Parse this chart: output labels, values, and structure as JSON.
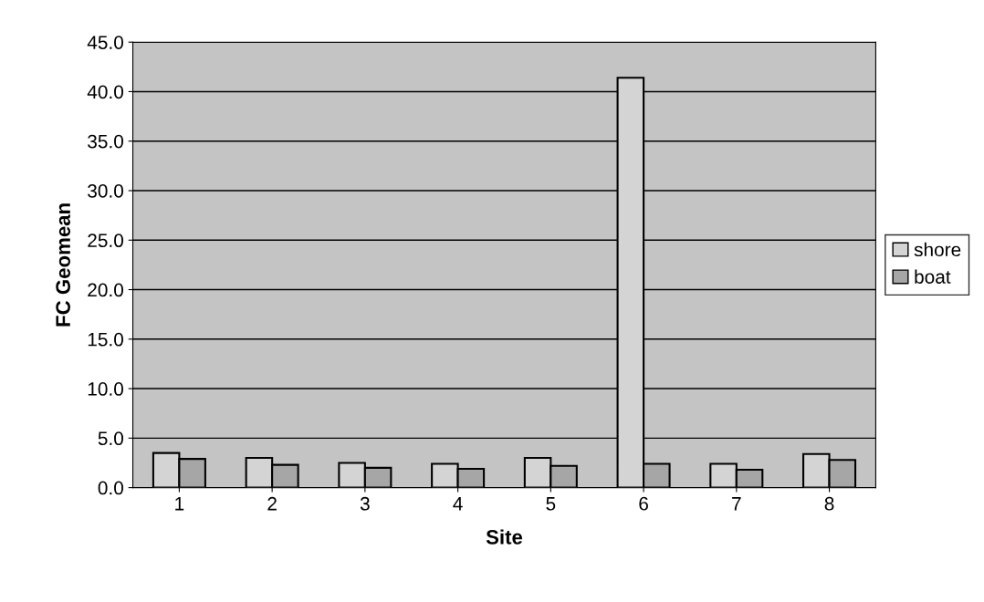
{
  "chart_data": {
    "type": "bar",
    "xlabel": "Site",
    "ylabel": "FC Geomean",
    "categories": [
      "1",
      "2",
      "3",
      "4",
      "5",
      "6",
      "7",
      "8"
    ],
    "series": [
      {
        "name": "shore",
        "color": "#d4d4d4",
        "values": [
          3.5,
          3.0,
          2.5,
          2.4,
          3.0,
          41.4,
          2.4,
          3.4
        ]
      },
      {
        "name": "boat",
        "color": "#a6a6a6",
        "values": [
          2.9,
          2.3,
          2.0,
          1.9,
          2.2,
          2.4,
          1.8,
          2.8
        ]
      }
    ],
    "ylim": [
      0,
      45
    ],
    "yticks": [
      {
        "value": 0,
        "label": "0.0"
      },
      {
        "value": 5,
        "label": "5.0"
      },
      {
        "value": 10,
        "label": "10.0"
      },
      {
        "value": 15,
        "label": "15.0"
      },
      {
        "value": 20,
        "label": "20.0"
      },
      {
        "value": 25,
        "label": "25.0"
      },
      {
        "value": 30,
        "label": "30.0"
      },
      {
        "value": 35,
        "label": "35.0"
      },
      {
        "value": 40,
        "label": "40.0"
      },
      {
        "value": 45,
        "label": "45.0"
      }
    ],
    "grid": "y",
    "legend": "right"
  }
}
